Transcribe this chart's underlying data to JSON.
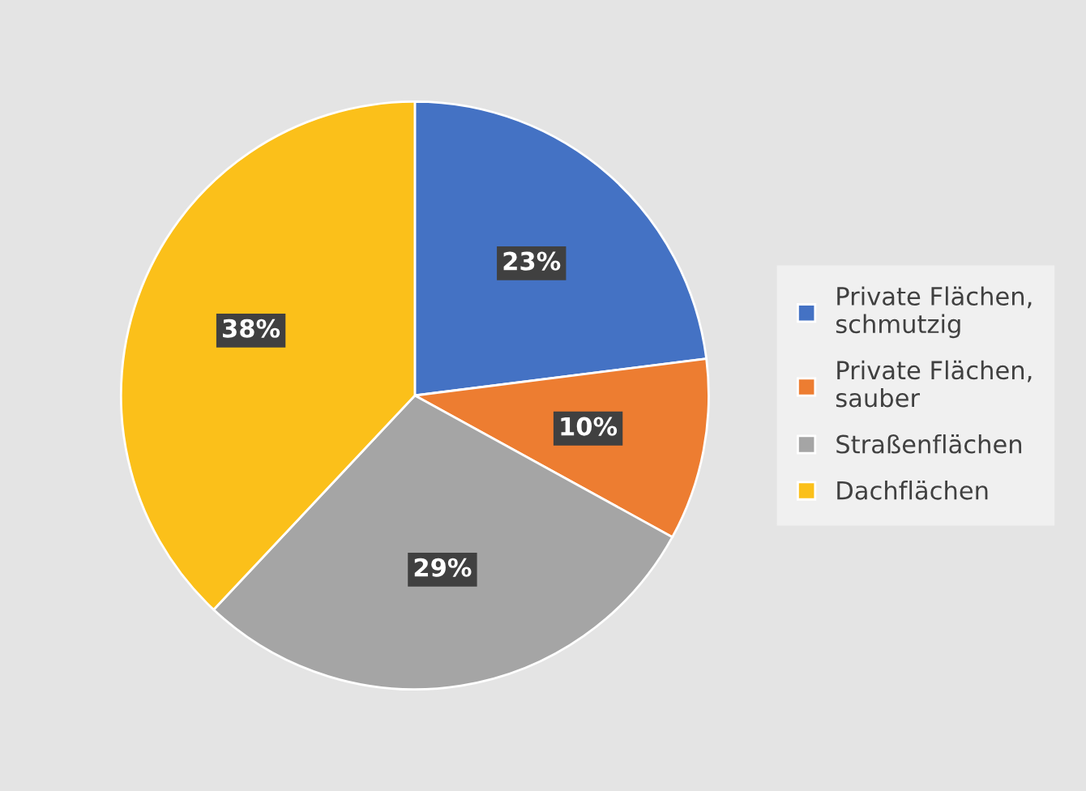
{
  "chart_data": {
    "type": "pie",
    "categories": [
      "Private Flächen,\nschmutzig",
      "Private Flächen,\nsauber",
      "Straßenflächen",
      "Dachflächen"
    ],
    "values": [
      23,
      10,
      29,
      38
    ],
    "colors": [
      "#4472c4",
      "#ed7d31",
      "#a5a5a5",
      "#fbc01a"
    ],
    "value_labels": [
      "23%",
      "10%",
      "29%",
      "38%"
    ],
    "legend": "right"
  }
}
